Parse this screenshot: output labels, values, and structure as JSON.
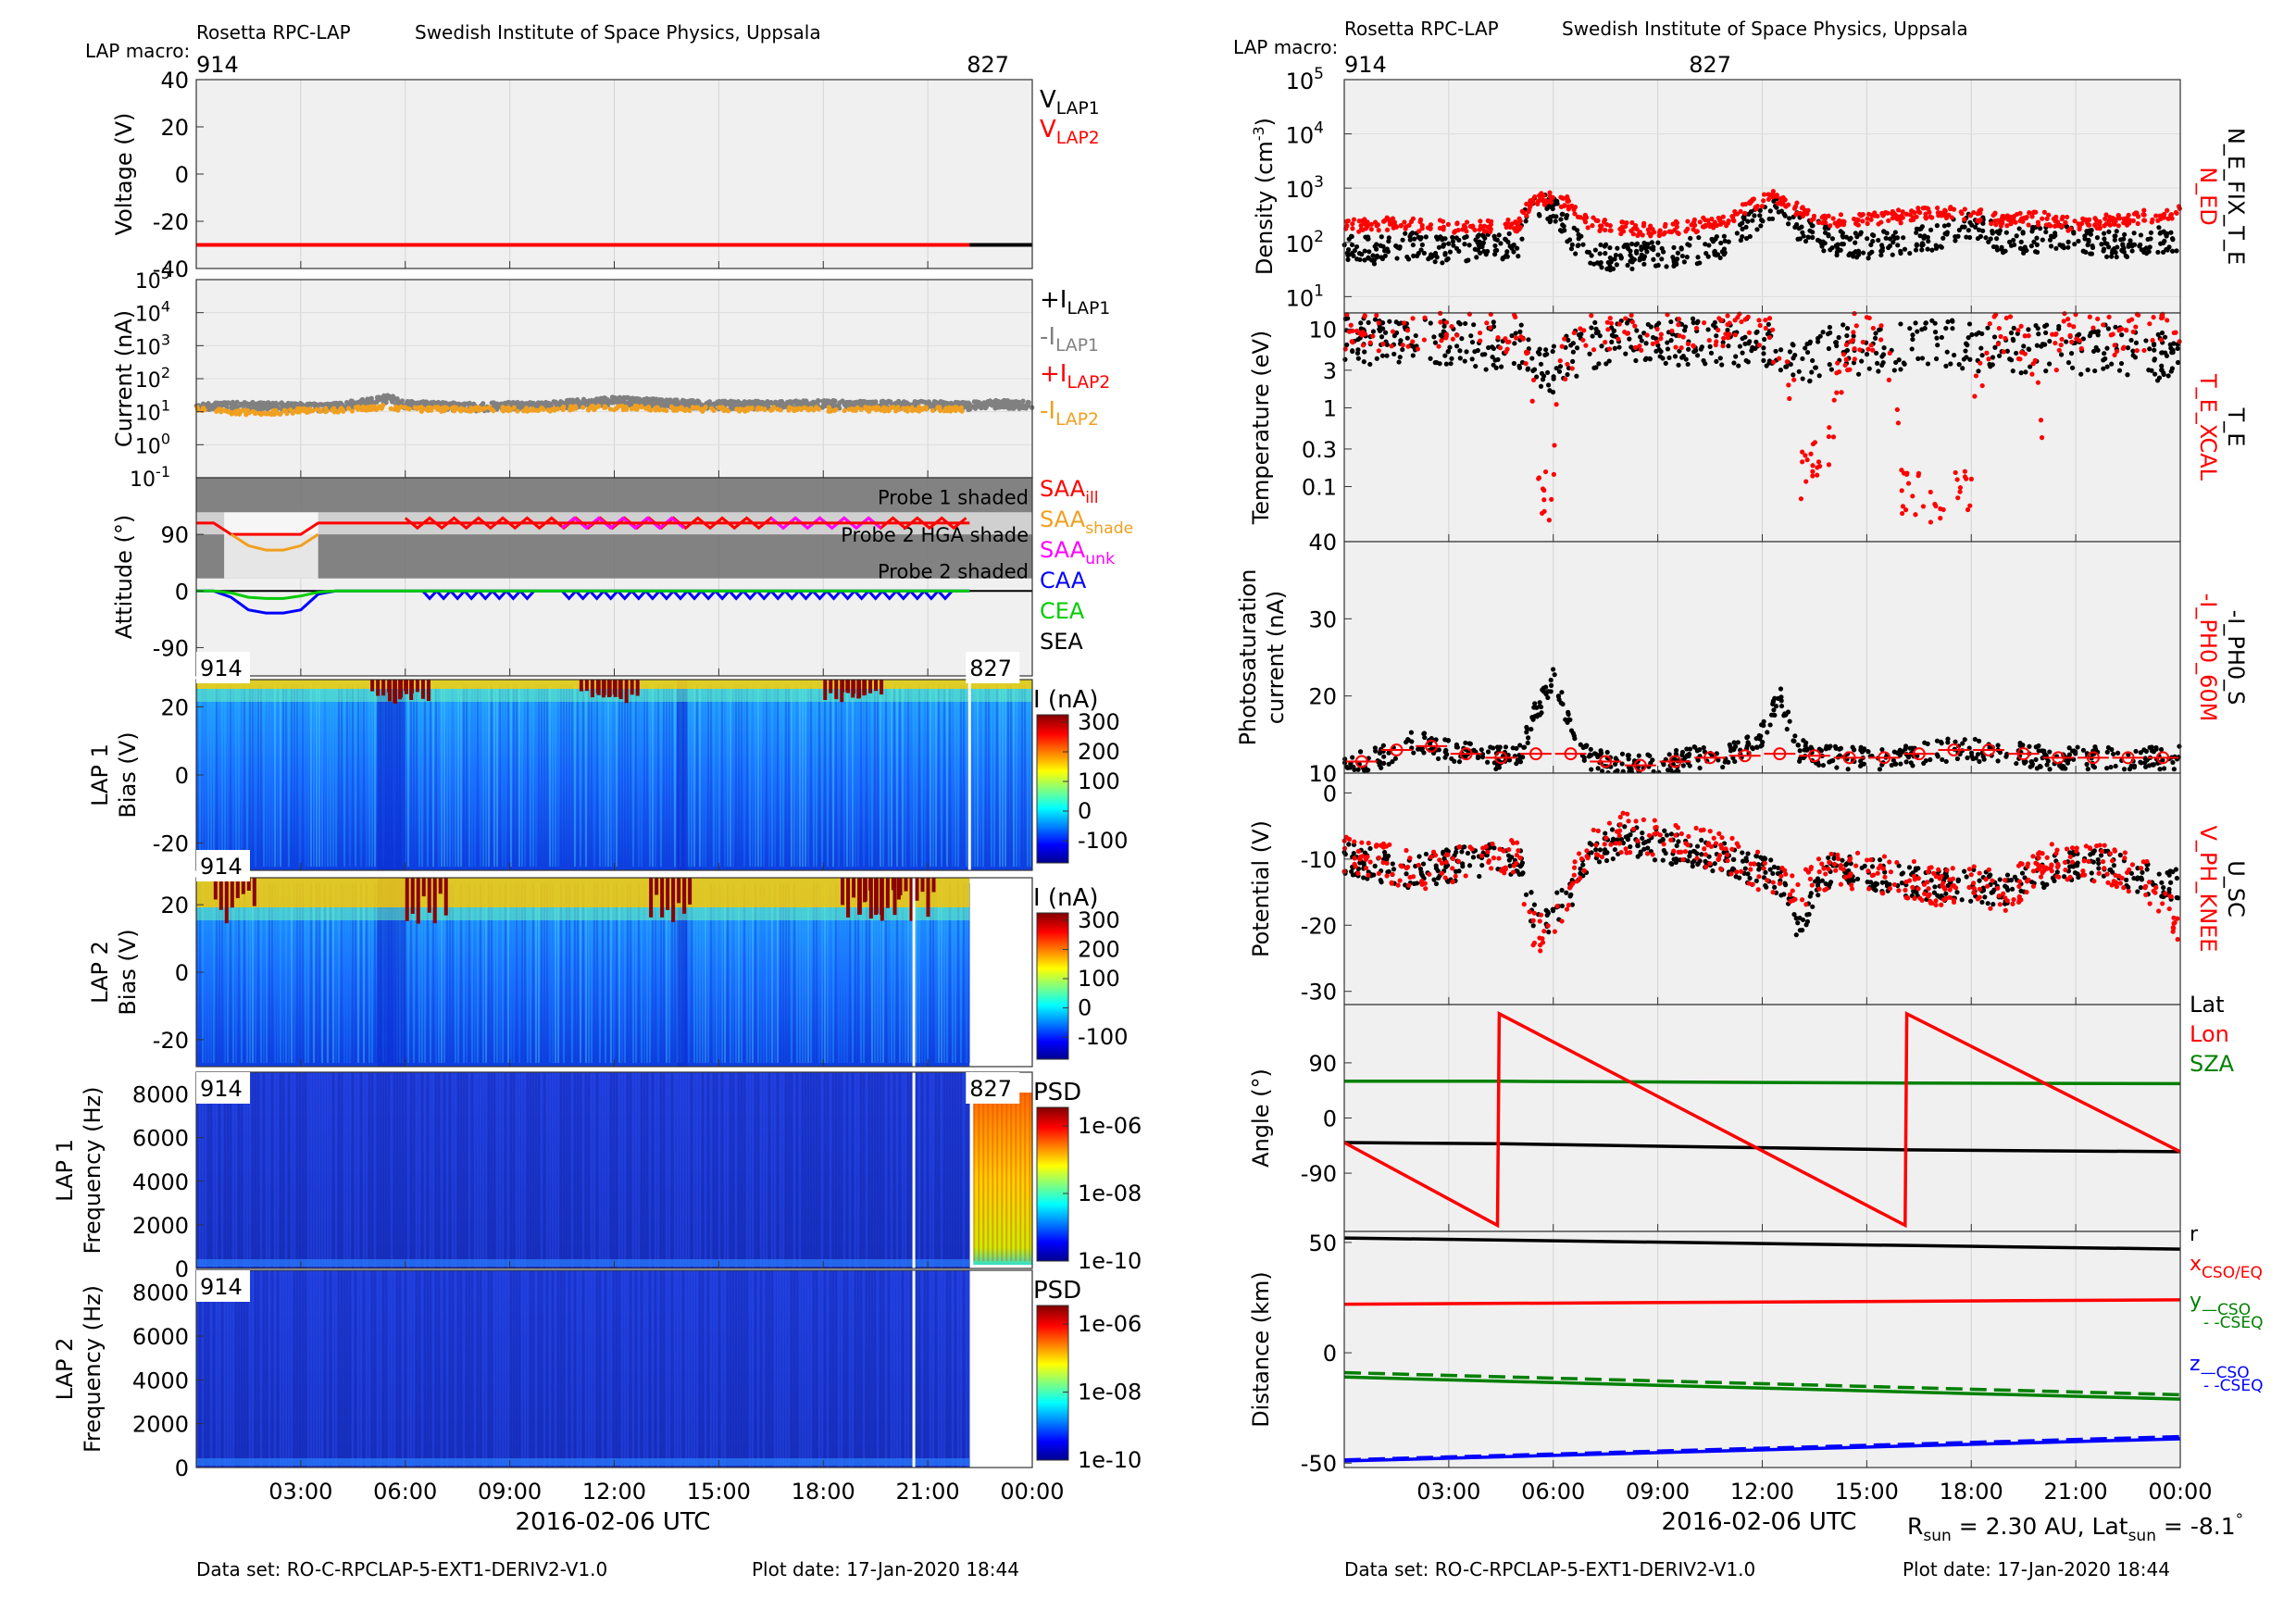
{
  "left": {
    "header": {
      "instrument": "Rosetta RPC-LAP",
      "institute": "Swedish Institute of Space Physics, Uppsala",
      "macro_label": "LAP macro:",
      "macro_start": "914",
      "macro_end": "827"
    },
    "footer": {
      "dataset": "Data set: RO-C-RPCLAP-5-EXT1-DERIV2-V1.0",
      "plot_date": "Plot date: 17-Jan-2020 18:44"
    },
    "xlabel": "2016-02-06 UTC",
    "xticks": [
      "03:00",
      "06:00",
      "09:00",
      "12:00",
      "15:00",
      "18:00",
      "21:00",
      "00:00"
    ]
  },
  "right": {
    "header": {
      "instrument": "Rosetta RPC-LAP",
      "institute": "Swedish Institute of Space Physics, Uppsala",
      "macro_label": "LAP macro:",
      "macro_start": "914",
      "macro_end": "827"
    },
    "footer": {
      "dataset": "Data set: RO-C-RPCLAP-5-EXT1-DERIV2-V1.0",
      "plot_date": "Plot date: 17-Jan-2020 18:44"
    },
    "xlabel": "2016-02-06 UTC",
    "xticks": [
      "03:00",
      "06:00",
      "09:00",
      "12:00",
      "15:00",
      "18:00",
      "21:00",
      "00:00"
    ],
    "rsun_note": {
      "r": "R",
      "r_sub": "sun",
      "r_val": " = 2.30 AU, Lat",
      "lat_sub": "sun",
      "lat_val": " = -8.1",
      "deg": "°"
    }
  },
  "colors": {
    "lap1": "#000000",
    "lap2": "#ff0000",
    "grey": "#808080",
    "orange": "#f0a020",
    "magenta": "#ff00ff",
    "blue": "#0000ff",
    "green": "#00cc00",
    "dkgreen": "#008000",
    "panel_bg": "#f0f0f0",
    "shade": "#6e6e6e",
    "spec_base": "#1a66ff"
  },
  "chart_data": [
    {
      "type": "line",
      "ylabel": "Voltage (V)",
      "ylim": [
        -40,
        40
      ],
      "yticks": [
        "40",
        "20",
        "0",
        "-20",
        "-40"
      ],
      "x": [
        0,
        22.2,
        24
      ],
      "series": [
        {
          "name": "V_LAP1",
          "values": [
            -30,
            -30,
            -30
          ]
        },
        {
          "name": "V_LAP2",
          "values": [
            -30,
            -30,
            null
          ]
        }
      ],
      "legend": [
        {
          "main": "V",
          "sub": "LAP1",
          "color": "#000000"
        },
        {
          "main": "V",
          "sub": "LAP2",
          "color": "#ff0000"
        }
      ]
    },
    {
      "type": "scatter",
      "ylabel": "Current (nA)",
      "yscale": "log",
      "ylim": [
        0.1,
        100000
      ],
      "yticks": [
        {
          "b": "10",
          "e": "5"
        },
        {
          "b": "10",
          "e": "4"
        },
        {
          "b": "10",
          "e": "3"
        },
        {
          "b": "10",
          "e": "2"
        },
        {
          "b": "10",
          "e": "1"
        },
        {
          "b": "10",
          "e": "0"
        },
        {
          "b": "10",
          "e": "-1"
        }
      ],
      "x": [
        0,
        1,
        2,
        3,
        4,
        5,
        5.5,
        6,
        7,
        8,
        9,
        10,
        11,
        12,
        13,
        14,
        15,
        16,
        17,
        18,
        19,
        20,
        21,
        22,
        23,
        24
      ],
      "series": [
        {
          "name": "-I_LAP1",
          "values": [
            14,
            14,
            14,
            13,
            13,
            18,
            24,
            15,
            14,
            13,
            14,
            14,
            17,
            20,
            18,
            16,
            15,
            15,
            15,
            16,
            15,
            15,
            15,
            14,
            16,
            15
          ]
        },
        {
          "name": "-I_LAP2",
          "values": [
            12,
            10,
            9,
            11,
            11,
            13,
            14,
            12,
            12,
            12,
            12,
            12,
            13,
            13,
            13,
            12,
            12,
            12,
            12,
            12,
            12,
            12,
            12,
            12,
            null,
            null
          ]
        }
      ],
      "legend": [
        {
          "main": "+I",
          "sub": "LAP1",
          "color": "#000000"
        },
        {
          "main": "-I",
          "sub": "LAP1",
          "color": "#808080"
        },
        {
          "main": "+I",
          "sub": "LAP2",
          "color": "#ff0000"
        },
        {
          "main": "-I",
          "sub": "LAP2",
          "color": "#f0a020"
        }
      ]
    },
    {
      "type": "line",
      "ylabel": "Attitude (°)",
      "ylim": [
        -135,
        180
      ],
      "yticks": [
        "90",
        "0",
        "-90"
      ],
      "shade_labels": [
        "Probe 1 shaded",
        "Probe 2 HGA shade",
        "Probe 2 shaded"
      ],
      "x": [
        0,
        0.5,
        1.0,
        1.5,
        2.0,
        2.5,
        3.0,
        3.5,
        4.0,
        5.0,
        6.0,
        12.0,
        22.2
      ],
      "series": [
        {
          "name": "SAA_ill",
          "values": [
            108,
            108,
            90,
            90,
            90,
            90,
            90,
            108,
            108,
            108,
            108,
            108,
            108
          ]
        },
        {
          "name": "SAA_shade",
          "values": [
            null,
            null,
            90,
            72,
            65,
            65,
            72,
            90,
            null,
            null,
            null,
            null,
            null
          ]
        },
        {
          "name": "CAA",
          "values": [
            0,
            0,
            -10,
            -30,
            -35,
            -35,
            -30,
            -5,
            0,
            0,
            0,
            0,
            0
          ]
        },
        {
          "name": "CEA",
          "values": [
            0,
            0,
            -3,
            -10,
            -12,
            -12,
            -8,
            -2,
            0,
            0,
            0,
            0,
            0
          ]
        }
      ],
      "legend": [
        {
          "main": "SAA",
          "sub": "ill",
          "color": "#ff0000"
        },
        {
          "main": "SAA",
          "sub": "shade",
          "color": "#f0a020"
        },
        {
          "main": "SAA",
          "sub": "unk",
          "color": "#ff00ff"
        },
        {
          "main": "CAA",
          "sub": "",
          "color": "#0000ff"
        },
        {
          "main": "CEA",
          "sub": "",
          "color": "#00cc00"
        },
        {
          "main": "SEA",
          "sub": "",
          "color": "#000000"
        }
      ]
    },
    {
      "type": "heatmap",
      "ylabel": "LAP 1",
      "ylabel2": "Bias (V)",
      "ylim": [
        -28,
        28
      ],
      "yticks": [
        "20",
        "0",
        "-20"
      ],
      "cbar_label": "I (nA)",
      "cbar_ticks": [
        "300",
        "200",
        "100",
        "0",
        "-100"
      ],
      "cbar_range": [
        -100,
        350
      ],
      "macro_tags": [
        "914",
        "827"
      ],
      "hot_hours": [
        5.0,
        5.5,
        11.0,
        11.5,
        18.0,
        18.5
      ],
      "data_end_hour": 24
    },
    {
      "type": "heatmap",
      "ylabel": "LAP 2",
      "ylabel2": "Bias (V)",
      "ylim": [
        -28,
        28
      ],
      "yticks": [
        "20",
        "0",
        "-20"
      ],
      "cbar_label": "I (nA)",
      "cbar_ticks": [
        "300",
        "200",
        "100",
        "0",
        "-100"
      ],
      "cbar_range": [
        -100,
        350
      ],
      "macro_tags": [
        "914"
      ],
      "hot_hours": [
        0.5,
        6.0,
        13.0,
        18.5,
        19.0,
        20.0
      ],
      "data_end_hour": 22.2
    },
    {
      "type": "heatmap",
      "ylabel": "LAP 1",
      "ylabel2": "Frequency (Hz)",
      "ylim": [
        0,
        9000
      ],
      "yticks": [
        "8000",
        "6000",
        "4000",
        "2000",
        "0"
      ],
      "cbar_label": "PSD",
      "cbar_ticks": [
        "1e-06",
        "1e-08",
        "1e-10"
      ],
      "macro_tags": [
        "914",
        "827"
      ],
      "data_end_hour": 24
    },
    {
      "type": "heatmap",
      "ylabel": "LAP 2",
      "ylabel2": "Frequency (Hz)",
      "ylim": [
        0,
        9000
      ],
      "yticks": [
        "8000",
        "6000",
        "4000",
        "2000",
        "0"
      ],
      "cbar_label": "PSD",
      "cbar_ticks": [
        "1e-06",
        "1e-08",
        "1e-10"
      ],
      "macro_tags": [
        "914"
      ],
      "data_end_hour": 22.2
    },
    {
      "type": "scatter",
      "ylabel": "Density (cm",
      "ylabel_exp": "-3",
      "ylabel_end": ")",
      "yscale": "log",
      "ylim": [
        5,
        100000
      ],
      "yticks": [
        {
          "b": "10",
          "e": "5"
        },
        {
          "b": "10",
          "e": "4"
        },
        {
          "b": "10",
          "e": "3"
        },
        {
          "b": "10",
          "e": "2"
        },
        {
          "b": "10",
          "e": "1"
        }
      ],
      "right_labels": [
        {
          "text": "N_ED",
          "color": "#ff0000"
        },
        {
          "text": "N_E_FIX_T_E",
          "color": "#000000"
        }
      ],
      "x": [
        0,
        1,
        2,
        3,
        4,
        5,
        5.5,
        6,
        6.5,
        7,
        8,
        9,
        10,
        11,
        12,
        12.5,
        13,
        14,
        15,
        16,
        17,
        18,
        19,
        20,
        21,
        22,
        23,
        24
      ],
      "series": [
        {
          "name": "N_ED",
          "values": [
            200,
            220,
            210,
            200,
            190,
            200,
            600,
            650,
            500,
            220,
            180,
            170,
            200,
            250,
            600,
            700,
            400,
            250,
            280,
            300,
            350,
            330,
            250,
            280,
            200,
            250,
            300,
            350
          ]
        },
        {
          "name": "N_E_FIX_T_E",
          "values": [
            80,
            70,
            90,
            70,
            80,
            90,
            500,
            400,
            120,
            60,
            50,
            60,
            70,
            80,
            300,
            500,
            200,
            100,
            90,
            100,
            120,
            200,
            100,
            110,
            120,
            90,
            100,
            120
          ]
        }
      ]
    },
    {
      "type": "scatter",
      "ylabel": "Temperature (eV)",
      "yscale": "log",
      "ylim": [
        0.02,
        16
      ],
      "yticks": [
        "10",
        "3",
        "1",
        "0.3",
        "0.1",
        "40"
      ],
      "right_labels": [
        {
          "text": "T_E_XCAL",
          "color": "#ff0000"
        },
        {
          "text": "T_E",
          "color": "#000000"
        }
      ],
      "x": [
        0,
        1,
        2,
        3,
        4,
        5,
        5.5,
        6,
        7,
        8,
        9,
        10,
        11,
        12,
        13,
        14,
        15,
        16,
        17,
        18,
        19,
        20,
        21,
        22,
        23,
        24
      ],
      "series": [
        {
          "name": "T_E",
          "values": [
            7,
            7,
            7.5,
            7,
            6,
            6.5,
            4,
            3,
            6,
            7,
            6.5,
            7,
            6.5,
            7,
            3,
            6,
            5,
            6,
            7,
            6,
            5,
            6,
            5,
            6,
            4,
            5
          ]
        },
        {
          "name": "T_E_XCAL",
          "values": [
            12,
            10,
            12,
            12,
            12,
            10,
            0.1,
            0.05,
            12,
            12,
            12,
            12,
            12,
            12,
            0.1,
            0.3,
            12,
            0.1,
            0.05,
            0.1,
            12,
            0.5,
            12,
            10,
            12,
            12
          ]
        }
      ]
    },
    {
      "type": "scatter",
      "ylabel": "Photosaturation",
      "ylabel2": "current (nA)",
      "ylim": [
        10,
        40
      ],
      "yticks": [
        "30",
        "20",
        "10"
      ],
      "right_labels": [
        {
          "text": "-I_PH0_60M",
          "color": "#ff0000"
        },
        {
          "text": "-I_PH0_S",
          "color": "#000000"
        }
      ],
      "x": [
        0,
        1,
        2,
        3,
        4,
        5,
        5.5,
        6,
        6.5,
        7,
        8,
        9,
        10,
        11,
        12,
        12.5,
        13,
        14,
        15,
        16,
        17,
        18,
        19,
        20,
        21,
        22,
        23,
        24
      ],
      "series": [
        {
          "name": "-I_PH0_S",
          "values": [
            11,
            12,
            14,
            13,
            12,
            12,
            18,
            22,
            16,
            12,
            11,
            11,
            12,
            12,
            15,
            20,
            13,
            12,
            12,
            12,
            13,
            13,
            13,
            12,
            12,
            12,
            12,
            12
          ]
        },
        {
          "name": "-I_PH0_60M",
          "values": [
            11,
            12,
            14,
            13,
            12,
            12,
            12.5,
            12.5,
            12.5,
            12,
            11,
            11,
            12,
            12,
            12.5,
            12.5,
            12.5,
            12,
            12,
            12,
            13,
            13,
            13,
            12,
            12,
            12,
            12,
            12
          ]
        }
      ]
    },
    {
      "type": "scatter",
      "ylabel": "Potential (V)",
      "ylim": [
        -32,
        3
      ],
      "yticks": [
        "10",
        "0",
        "-10",
        "-20",
        "-30"
      ],
      "right_labels": [
        {
          "text": "V_PH_KNEE",
          "color": "#ff0000"
        },
        {
          "text": "U_SC",
          "color": "#000000"
        }
      ],
      "x": [
        0,
        1,
        2,
        3,
        4,
        5,
        5.5,
        6,
        6.5,
        7,
        8,
        9,
        10,
        11,
        12,
        12.5,
        13,
        14,
        15,
        16,
        17,
        18,
        19,
        20,
        21,
        22,
        23,
        24
      ],
      "series": [
        {
          "name": "U_SC",
          "values": [
            -10,
            -11,
            -12,
            -11,
            -10,
            -10,
            -20,
            -18,
            -15,
            -9,
            -7,
            -8,
            -9,
            -10,
            -12,
            -13,
            -20,
            -11,
            -12,
            -13,
            -14,
            -14,
            -15,
            -12,
            -11,
            -11,
            -13,
            -14
          ]
        },
        {
          "name": "V_PH_KNEE",
          "values": [
            -9,
            -10,
            -12,
            -11,
            -10,
            -10,
            -22,
            -20,
            -15,
            -8,
            -6,
            -7,
            -8,
            -9,
            -12,
            -13,
            -15,
            -11,
            -12,
            -13,
            -14,
            -14,
            -15,
            -11,
            -10,
            -11,
            -13,
            -20
          ]
        }
      ]
    },
    {
      "type": "line",
      "ylabel": "Angle (°)",
      "ylim": [
        -185,
        185
      ],
      "yticks": [
        "90",
        "0",
        "-90"
      ],
      "legend": [
        {
          "main": "Lat",
          "sub": "",
          "color": "#000000"
        },
        {
          "main": "Lon",
          "sub": "",
          "color": "#ff0000"
        },
        {
          "main": "SZA",
          "sub": "",
          "color": "#008000"
        }
      ],
      "x": [
        0,
        4.4,
        4.45,
        16.1,
        16.15,
        24
      ],
      "series": [
        {
          "name": "Lat",
          "values": [
            -40,
            -42,
            -42,
            -52,
            -52,
            -55
          ]
        },
        {
          "name": "Lon",
          "values": [
            -40,
            -175,
            170,
            -175,
            170,
            -55
          ]
        },
        {
          "name": "SZA",
          "values": [
            60,
            60,
            60,
            57,
            57,
            56
          ]
        }
      ]
    },
    {
      "type": "line",
      "ylabel": "Distance (km)",
      "ylim": [
        -52,
        55
      ],
      "yticks": [
        "50",
        "0",
        "-50"
      ],
      "legend": [
        {
          "main": "r",
          "sub": "",
          "color": "#000000"
        },
        {
          "main": "x",
          "sub": "CSO/EQ",
          "color": "#ff0000"
        },
        {
          "main": "y",
          "sub": "—CSO",
          "color": "#008000"
        },
        {
          "main": "",
          "sub": "- -CSEQ",
          "color": "#008000"
        },
        {
          "main": "z",
          "sub": "—CSO",
          "color": "#0000ff"
        },
        {
          "main": "",
          "sub": "- -CSEQ",
          "color": "#0000ff"
        }
      ],
      "x": [
        0,
        24
      ],
      "series": [
        {
          "name": "r",
          "values": [
            52,
            47
          ]
        },
        {
          "name": "x",
          "values": [
            22,
            24
          ]
        },
        {
          "name": "y CSO",
          "values": [
            -11,
            -21
          ]
        },
        {
          "name": "y CSEQ",
          "values": [
            -9,
            -19
          ]
        },
        {
          "name": "z CSO",
          "values": [
            -49,
            -39
          ]
        },
        {
          "name": "z CSEQ",
          "values": [
            -48.5,
            -38
          ]
        }
      ]
    }
  ]
}
